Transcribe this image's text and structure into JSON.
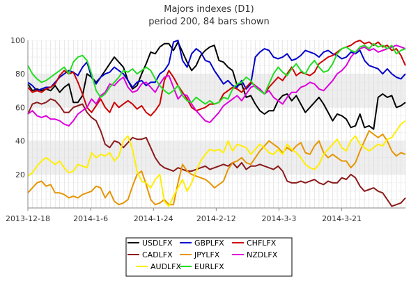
{
  "chart_data": {
    "type": "line",
    "title": "Majors indexes (D1)",
    "subtitle": "period 200, 84 bars shown",
    "xlabel": "",
    "ylabel": "",
    "ylim": [
      0,
      100
    ],
    "yticks": [
      20,
      40,
      60,
      80,
      100
    ],
    "xtick_labels": [
      {
        "label": "2013-12-18",
        "index": 0
      },
      {
        "label": "2014-1-6",
        "index": 13.8
      },
      {
        "label": "2014-1-24",
        "index": 27.6
      },
      {
        "label": "2014-2-12",
        "index": 41.4
      },
      {
        "label": "2014-3-3",
        "index": 55.2
      },
      {
        "label": "2014-3-21",
        "index": 69
      }
    ],
    "grid": true,
    "shaded_bands": [
      [
        20,
        40
      ],
      [
        60,
        80
      ]
    ],
    "legend_placement": "bottom",
    "series": [
      {
        "name": "USDLFX",
        "color": "#000000",
        "values": [
          74,
          70,
          71,
          70,
          71,
          70,
          73,
          69,
          72,
          74,
          63,
          63,
          67,
          80,
          78,
          75,
          78,
          82,
          86,
          90,
          87,
          84,
          76,
          71,
          73,
          80,
          86,
          93,
          92,
          96,
          98,
          98,
          94,
          99,
          93,
          87,
          82,
          85,
          91,
          94,
          96,
          97,
          88,
          87,
          84,
          82,
          73,
          74,
          66,
          67,
          62,
          58,
          56,
          58,
          58,
          64,
          67,
          68,
          64,
          67,
          62,
          57,
          60,
          63,
          66,
          62,
          57,
          52,
          56,
          55,
          53,
          48,
          49,
          56,
          48,
          49,
          47,
          66,
          68,
          66,
          67,
          60,
          61,
          63
        ]
      },
      {
        "name": "GBPLFX",
        "color": "#0000cc",
        "values": [
          75,
          73,
          70,
          71,
          72,
          72,
          75,
          78,
          80,
          82,
          81,
          79,
          84,
          87,
          78,
          74,
          78,
          80,
          81,
          84,
          82,
          80,
          76,
          72,
          75,
          76,
          73,
          75,
          75,
          80,
          82,
          86,
          99,
          100,
          88,
          84,
          92,
          95,
          93,
          88,
          87,
          82,
          78,
          74,
          76,
          73,
          72,
          76,
          71,
          74,
          90,
          93,
          95,
          94,
          90,
          89,
          90,
          92,
          88,
          89,
          91,
          94,
          93,
          92,
          90,
          93,
          94,
          92,
          91,
          89,
          90,
          93,
          92,
          94,
          88,
          85,
          84,
          83,
          80,
          83,
          80,
          78,
          77,
          80
        ]
      },
      {
        "name": "CHFLFX",
        "color": "#cc0000",
        "values": [
          72,
          69,
          70,
          69,
          71,
          72,
          74,
          79,
          82,
          80,
          81,
          75,
          68,
          60,
          57,
          61,
          65,
          60,
          57,
          63,
          60,
          62,
          64,
          62,
          59,
          61,
          57,
          55,
          58,
          62,
          76,
          82,
          78,
          73,
          69,
          65,
          60,
          58,
          59,
          60,
          62,
          62,
          63,
          68,
          70,
          72,
          71,
          69,
          72,
          75,
          73,
          70,
          68,
          72,
          75,
          78,
          76,
          80,
          84,
          79,
          81,
          80,
          79,
          81,
          86,
          88,
          90,
          91,
          93,
          95,
          96,
          97,
          99,
          100,
          98,
          99,
          97,
          99,
          96,
          97,
          94,
          95,
          91,
          85
        ]
      },
      {
        "name": "CADLFX",
        "color": "#8b1a1a",
        "values": [
          56,
          62,
          63,
          62,
          63,
          65,
          64,
          61,
          57,
          57,
          60,
          61,
          62,
          57,
          54,
          52,
          46,
          38,
          36,
          40,
          39,
          36,
          39,
          42,
          41,
          41,
          42,
          36,
          30,
          26,
          24,
          23,
          22,
          24,
          23,
          22,
          22,
          23,
          24,
          25,
          23,
          24,
          25,
          26,
          25,
          27,
          24,
          27,
          23,
          25,
          25,
          26,
          25,
          24,
          23,
          25,
          22,
          16,
          15,
          15,
          16,
          15,
          16,
          17,
          15,
          14,
          16,
          15,
          15,
          18,
          17,
          20,
          18,
          13,
          10,
          11,
          12,
          10,
          9,
          5,
          1,
          2,
          3,
          6
        ]
      },
      {
        "name": "JPYLFX",
        "color": "#e69500",
        "values": [
          9,
          12,
          15,
          16,
          13,
          14,
          9,
          9,
          8,
          6,
          7,
          6,
          8,
          9,
          10,
          13,
          12,
          6,
          10,
          4,
          2,
          3,
          5,
          13,
          20,
          22,
          14,
          5,
          2,
          3,
          5,
          2,
          2,
          15,
          26,
          22,
          20,
          19,
          18,
          17,
          15,
          12,
          14,
          16,
          23,
          27,
          28,
          30,
          27,
          26,
          30,
          34,
          37,
          40,
          38,
          36,
          33,
          36,
          34,
          37,
          39,
          33,
          32,
          37,
          40,
          33,
          30,
          32,
          30,
          28,
          28,
          24,
          27,
          34,
          40,
          46,
          44,
          42,
          44,
          40,
          34,
          31,
          33,
          32
        ]
      },
      {
        "name": "NZDLFX",
        "color": "#dd00dd",
        "values": [
          56,
          58,
          55,
          54,
          55,
          53,
          53,
          52,
          50,
          49,
          52,
          56,
          58,
          60,
          65,
          62,
          67,
          69,
          74,
          73,
          76,
          78,
          72,
          69,
          70,
          74,
          75,
          72,
          69,
          74,
          78,
          79,
          72,
          65,
          68,
          67,
          62,
          58,
          55,
          52,
          51,
          54,
          57,
          61,
          63,
          65,
          67,
          64,
          68,
          72,
          73,
          71,
          68,
          70,
          66,
          64,
          62,
          66,
          69,
          69,
          72,
          73,
          75,
          74,
          71,
          70,
          73,
          76,
          80,
          82,
          85,
          90,
          93,
          95,
          96,
          94,
          95,
          93,
          94,
          95,
          96,
          97,
          96,
          95
        ]
      },
      {
        "name": "AUDLFX",
        "color": "#ffee00",
        "values": [
          19,
          21,
          25,
          28,
          30,
          28,
          26,
          28,
          24,
          21,
          22,
          26,
          25,
          24,
          33,
          30,
          32,
          31,
          33,
          28,
          31,
          40,
          43,
          35,
          22,
          16,
          15,
          12,
          17,
          20,
          4,
          1,
          7,
          12,
          17,
          10,
          15,
          22,
          28,
          32,
          35,
          34,
          35,
          33,
          40,
          34,
          38,
          37,
          36,
          32,
          35,
          38,
          36,
          33,
          32,
          35,
          32,
          38,
          35,
          33,
          30,
          26,
          24,
          23,
          26,
          32,
          35,
          38,
          41,
          36,
          34,
          40,
          43,
          38,
          36,
          34,
          36,
          38,
          37,
          41,
          42,
          46,
          50,
          52
        ]
      },
      {
        "name": "EURLFX",
        "color": "#22dd22",
        "values": [
          85,
          80,
          77,
          75,
          76,
          78,
          80,
          82,
          84,
          80,
          87,
          90,
          91,
          88,
          80,
          70,
          66,
          68,
          72,
          75,
          78,
          82,
          81,
          83,
          80,
          82,
          84,
          82,
          77,
          73,
          70,
          68,
          70,
          73,
          67,
          64,
          63,
          66,
          64,
          62,
          64,
          62,
          63,
          66,
          65,
          71,
          74,
          75,
          78,
          76,
          72,
          70,
          68,
          74,
          80,
          84,
          81,
          79,
          83,
          86,
          82,
          80,
          85,
          88,
          84,
          81,
          82,
          86,
          92,
          95,
          96,
          94,
          93,
          96,
          97,
          95,
          98,
          96,
          97,
          95,
          97,
          92,
          94,
          95
        ]
      }
    ]
  }
}
